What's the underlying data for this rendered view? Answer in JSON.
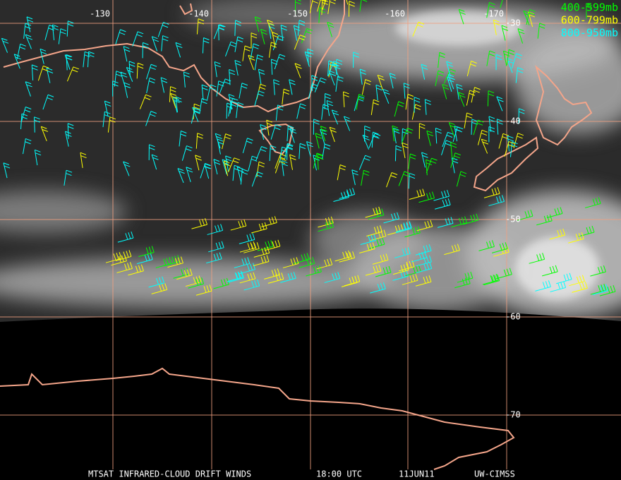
{
  "map": {
    "longitude_labels": [
      "-130",
      "-140",
      "-150",
      "-160",
      "-170"
    ],
    "latitude_labels": [
      "-30",
      "-40",
      "-50",
      "-60",
      "-70"
    ],
    "legend": [
      {
        "label": "400-599mb",
        "color": "#00ff00"
      },
      {
        "label": "600-799mb",
        "color": "#ffff00"
      },
      {
        "label": "800-950mb",
        "color": "#00ffff"
      }
    ],
    "footer": [
      "MTSAT INFRARED-CLOUD DRIFT WINDS",
      "18:00 UTC",
      "11JUN11",
      "UW-CIMSS"
    ]
  }
}
